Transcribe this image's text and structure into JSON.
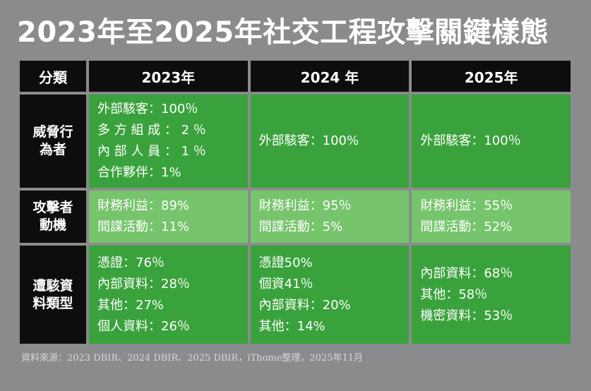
{
  "title": "2023年至2025年社交工程攻擊關鍵樣態",
  "headers": [
    "分類",
    "2023年",
    "2024 年",
    "2025年"
  ],
  "rows": [
    {
      "label": "威脅行為者",
      "cells": [
        [
          "外部駭客：100％",
          "多 方 組 成 ： 2 ％",
          "內 部 人 員 ： 1 ％",
          "合作夥伴：1%"
        ],
        [
          "外部駭客：100%"
        ],
        [
          "外部駭客：100％"
        ]
      ]
    },
    {
      "label": "攻擊者動機",
      "cells": [
        [
          "財務利益：89%",
          "間諜活動：11%"
        ],
        [
          "財務利益：95％",
          "間諜活動：5%"
        ],
        [
          "財務利益：55％",
          "間諜活動：52%"
        ]
      ]
    },
    {
      "label": "遭駭資料類型",
      "cells": [
        [
          "憑證：76％",
          "內部資料：28％",
          "其他：27%",
          "個人資料：26％"
        ],
        [
          "憑證50%",
          "個資41％",
          "內部資料：20%",
          "其他：14%"
        ],
        [
          "內部資料：68％",
          "其他：58％",
          "機密資料：53％"
        ]
      ]
    }
  ],
  "source": "資料來源：2023 DBIR、2024 DBIR、2025 DBIR，iThome整理，2025年11月",
  "colors": {
    "background": "#8a8b8d",
    "header": "#0d0d0d",
    "cell_green": "#3aa23c",
    "cell_green_light": "#76c46c"
  }
}
